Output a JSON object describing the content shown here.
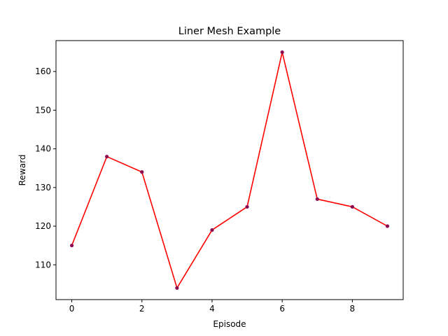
{
  "chart_data": {
    "type": "line",
    "title": "Liner Mesh Example",
    "xlabel": "Episode",
    "ylabel": "Reward",
    "x": [
      0,
      1,
      2,
      3,
      4,
      5,
      6,
      7,
      8,
      9
    ],
    "series": [
      {
        "values": [
          115,
          138,
          134,
          104,
          119,
          125,
          165,
          127,
          125,
          120
        ],
        "line_color": "#ff0000",
        "marker_color": "#8b0a50"
      }
    ],
    "xlim": [
      -0.45,
      9.45
    ],
    "ylim": [
      101,
      168
    ],
    "xticks": [
      0,
      2,
      4,
      6,
      8
    ],
    "yticks": [
      110,
      120,
      130,
      140,
      150,
      160
    ],
    "grid": false
  }
}
